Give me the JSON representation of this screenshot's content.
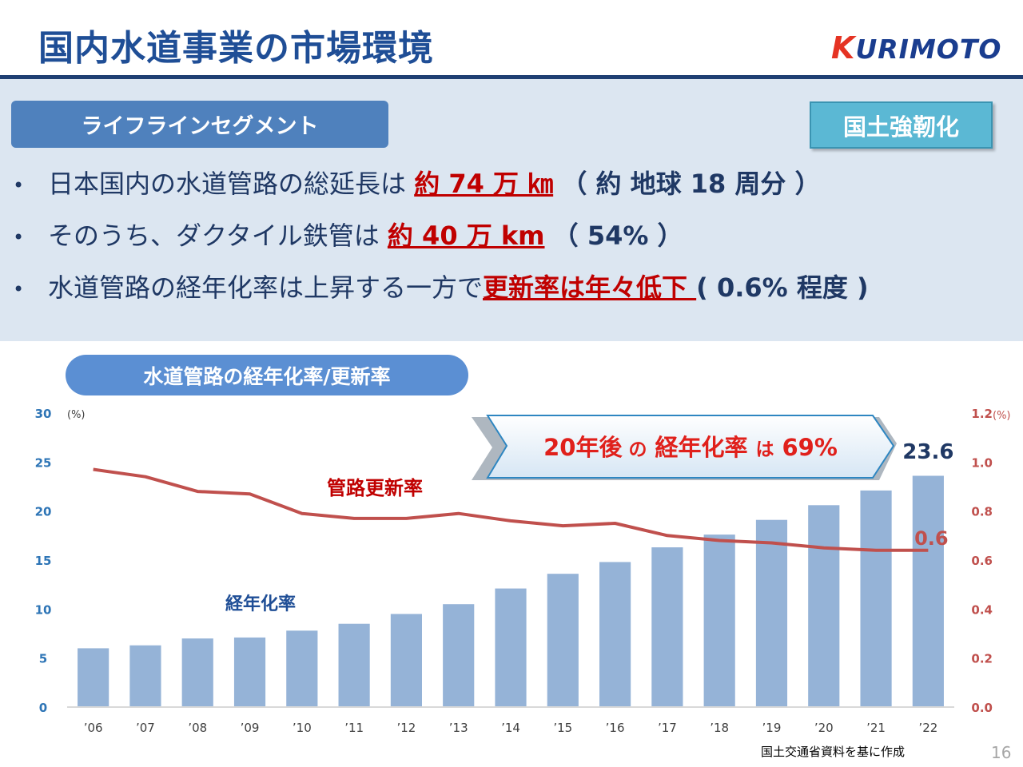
{
  "header": {
    "title": "国内水道事業の市場環境",
    "logo_text": "URIMOTO",
    "logo_k": "K"
  },
  "panel": {
    "segment_label": "ライフラインセグメント",
    "tag_label": "国土強靭化",
    "bullets": [
      {
        "text": "日本国内の水道管路の総延長は",
        "highlight": "約 74 万 ㎞",
        "tail": "（ 約 地球 18 周分 ）"
      },
      {
        "text": "そのうち、ダクタイル鉄管は",
        "highlight": "約 40 万 km",
        "tail": "（ 54% ）"
      },
      {
        "text": "水道管路の経年化率は上昇する一方で",
        "highlight": "更新率は年々低下 ",
        "tail": "( 0.6% 程度 )"
      }
    ]
  },
  "chart_title": "水道管路の経年化率/更新率",
  "chart_data": {
    "type": "bar",
    "categories": [
      "’06",
      "’07",
      "’08",
      "’09",
      "’10",
      "’11",
      "’12",
      "’13",
      "’14",
      "’15",
      "’16",
      "’17",
      "’18",
      "’19",
      "’20",
      "’21",
      "’22"
    ],
    "series": [
      {
        "name": "経年化率",
        "type": "bar",
        "axis": "left",
        "color": "#95b3d7",
        "values": [
          6.0,
          6.3,
          7.0,
          7.1,
          7.8,
          8.5,
          9.5,
          10.5,
          12.1,
          13.6,
          14.8,
          16.3,
          17.6,
          19.1,
          20.6,
          22.1,
          23.6
        ]
      },
      {
        "name": "管路更新率",
        "type": "line",
        "axis": "right",
        "color": "#c0504d",
        "values": [
          0.97,
          0.94,
          0.88,
          0.87,
          0.79,
          0.77,
          0.77,
          0.79,
          0.76,
          0.74,
          0.75,
          0.7,
          0.68,
          0.67,
          0.65,
          0.64,
          0.64
        ]
      }
    ],
    "y_left": {
      "min": 0,
      "max": 30,
      "ticks": [
        0,
        5,
        10,
        15,
        20,
        25,
        30
      ],
      "unit": "(%)"
    },
    "y_right": {
      "min": 0.0,
      "max": 1.2,
      "ticks": [
        "0.0",
        "0.2",
        "0.4",
        "0.6",
        "0.8",
        "1.0",
        "1.2"
      ],
      "unit": "(%)"
    },
    "last_bar_label": "23.6",
    "last_line_label": "0.6",
    "callout": {
      "prefix": "20年後",
      "mid": "の",
      "main": "経年化率",
      "mid2": "は",
      "value": "69%"
    },
    "grid": false,
    "colors": {
      "left_axis": "#2e75b6",
      "right_axis": "#c0504d",
      "bar": "#95b3d7",
      "line": "#c0504d"
    }
  },
  "footer": {
    "source": "国土交通省資料を基に作成",
    "page": "16"
  }
}
